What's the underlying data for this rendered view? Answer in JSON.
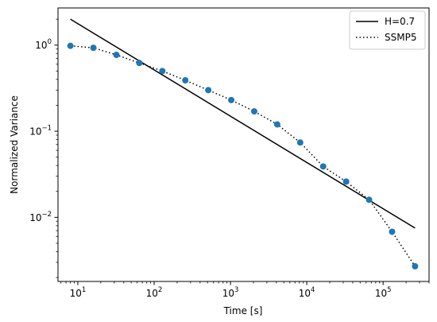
{
  "chart_data": {
    "type": "line",
    "xlabel": "Time [s]",
    "ylabel": "Normalized Variance",
    "xscale": "log",
    "yscale": "log",
    "xlim": [
      5.5,
      400000
    ],
    "ylim": [
      0.0018,
      2.7
    ],
    "grid": false,
    "legend_position": "top-right",
    "x_ticks": [
      {
        "value": 10,
        "base": "10",
        "exp": "1"
      },
      {
        "value": 100,
        "base": "10",
        "exp": "2"
      },
      {
        "value": 1000,
        "base": "10",
        "exp": "3"
      },
      {
        "value": 10000,
        "base": "10",
        "exp": "4"
      },
      {
        "value": 100000,
        "base": "10",
        "exp": "5"
      }
    ],
    "y_ticks": [
      {
        "value": 1,
        "base": "10",
        "exp": "0"
      },
      {
        "value": 0.1,
        "base": "10",
        "exp": "−1"
      },
      {
        "value": 0.01,
        "base": "10",
        "exp": "−2"
      }
    ],
    "series": [
      {
        "name": "H=0.7",
        "style": "solid",
        "color": "#000000",
        "x": [
          8,
          262144
        ],
        "y": [
          2.0,
          0.0075
        ]
      },
      {
        "name": "SSMP5",
        "style": "dotted",
        "color": "#000000",
        "marker_color": "#1f77b4",
        "x": [
          8,
          16,
          32,
          64,
          128,
          256,
          512,
          1024,
          2048,
          4096,
          8192,
          16384,
          32768,
          65536,
          131072,
          262144
        ],
        "y": [
          0.98,
          0.93,
          0.77,
          0.62,
          0.5,
          0.39,
          0.3,
          0.23,
          0.17,
          0.12,
          0.074,
          0.039,
          0.026,
          0.016,
          0.0068,
          0.0027
        ]
      }
    ]
  }
}
